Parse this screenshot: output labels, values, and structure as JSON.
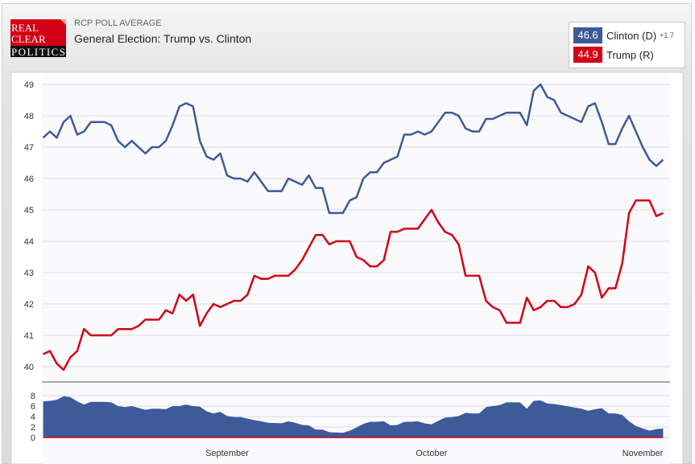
{
  "header": {
    "logo_text": "REAL CLEAR POLITICS",
    "subtitle": "RCP POLL AVERAGE",
    "title": "General Election: Trump vs. Clinton"
  },
  "legend": [
    {
      "value": "46.6",
      "name": "Clinton (D)",
      "spread": "+1.7",
      "color": "#3d5a99"
    },
    {
      "value": "44.9",
      "name": "Trump (R)",
      "color": "#d30015"
    }
  ],
  "chart_data": {
    "type": "line",
    "title": "General Election: Trump vs. Clinton",
    "ylim": [
      40,
      49
    ],
    "yticks": [
      "40",
      "41",
      "42",
      "43",
      "44",
      "45",
      "46",
      "47",
      "48",
      "49"
    ],
    "xticks": [
      {
        "label": "September",
        "date": "2016-09-01"
      },
      {
        "label": "October",
        "date": "2016-10-01"
      },
      {
        "label": "November",
        "date": "2016-11-01"
      }
    ],
    "grid": true,
    "series": [
      {
        "name": "Clinton (D)",
        "color": "#3d5a99",
        "points": [
          [
            "2016-08-05",
            47.3
          ],
          [
            "2016-08-06",
            47.5
          ],
          [
            "2016-08-07",
            47.3
          ],
          [
            "2016-08-08",
            47.8
          ],
          [
            "2016-08-09",
            48.0
          ],
          [
            "2016-08-10",
            47.4
          ],
          [
            "2016-08-11",
            47.5
          ],
          [
            "2016-08-12",
            47.8
          ],
          [
            "2016-08-14",
            47.8
          ],
          [
            "2016-08-15",
            47.7
          ],
          [
            "2016-08-16",
            47.2
          ],
          [
            "2016-08-17",
            47.0
          ],
          [
            "2016-08-18",
            47.2
          ],
          [
            "2016-08-20",
            46.8
          ],
          [
            "2016-08-21",
            47.0
          ],
          [
            "2016-08-22",
            47.0
          ],
          [
            "2016-08-23",
            47.2
          ],
          [
            "2016-08-24",
            47.7
          ],
          [
            "2016-08-25",
            48.3
          ],
          [
            "2016-08-26",
            48.4
          ],
          [
            "2016-08-27",
            48.3
          ],
          [
            "2016-08-28",
            47.2
          ],
          [
            "2016-08-29",
            46.7
          ],
          [
            "2016-08-30",
            46.6
          ],
          [
            "2016-08-31",
            46.8
          ],
          [
            "2016-09-01",
            46.1
          ],
          [
            "2016-09-02",
            46.0
          ],
          [
            "2016-09-03",
            46.0
          ],
          [
            "2016-09-04",
            45.9
          ],
          [
            "2016-09-05",
            46.2
          ],
          [
            "2016-09-06",
            45.9
          ],
          [
            "2016-09-07",
            45.6
          ],
          [
            "2016-09-09",
            45.6
          ],
          [
            "2016-09-10",
            46.0
          ],
          [
            "2016-09-11",
            45.9
          ],
          [
            "2016-09-12",
            45.8
          ],
          [
            "2016-09-13",
            46.1
          ],
          [
            "2016-09-14",
            45.7
          ],
          [
            "2016-09-15",
            45.7
          ],
          [
            "2016-09-16",
            44.9
          ],
          [
            "2016-09-18",
            44.9
          ],
          [
            "2016-09-19",
            45.3
          ],
          [
            "2016-09-20",
            45.4
          ],
          [
            "2016-09-21",
            46.0
          ],
          [
            "2016-09-22",
            46.2
          ],
          [
            "2016-09-23",
            46.2
          ],
          [
            "2016-09-24",
            46.5
          ],
          [
            "2016-09-25",
            46.6
          ],
          [
            "2016-09-26",
            46.7
          ],
          [
            "2016-09-27",
            47.4
          ],
          [
            "2016-09-28",
            47.4
          ],
          [
            "2016-09-29",
            47.5
          ],
          [
            "2016-09-30",
            47.4
          ],
          [
            "2016-10-01",
            47.5
          ],
          [
            "2016-10-02",
            47.8
          ],
          [
            "2016-10-03",
            48.1
          ],
          [
            "2016-10-04",
            48.1
          ],
          [
            "2016-10-05",
            48.0
          ],
          [
            "2016-10-06",
            47.6
          ],
          [
            "2016-10-07",
            47.5
          ],
          [
            "2016-10-08",
            47.5
          ],
          [
            "2016-10-09",
            47.9
          ],
          [
            "2016-10-10",
            47.9
          ],
          [
            "2016-10-11",
            48.0
          ],
          [
            "2016-10-12",
            48.1
          ],
          [
            "2016-10-14",
            48.1
          ],
          [
            "2016-10-15",
            47.7
          ],
          [
            "2016-10-16",
            48.8
          ],
          [
            "2016-10-17",
            49.0
          ],
          [
            "2016-10-18",
            48.6
          ],
          [
            "2016-10-19",
            48.5
          ],
          [
            "2016-10-20",
            48.1
          ],
          [
            "2016-10-23",
            47.8
          ],
          [
            "2016-10-24",
            48.3
          ],
          [
            "2016-10-25",
            48.4
          ],
          [
            "2016-10-26",
            47.8
          ],
          [
            "2016-10-27",
            47.1
          ],
          [
            "2016-10-28",
            47.1
          ],
          [
            "2016-10-29",
            47.6
          ],
          [
            "2016-10-30",
            48.0
          ],
          [
            "2016-10-31",
            47.5
          ],
          [
            "2016-11-01",
            47.0
          ],
          [
            "2016-11-02",
            46.6
          ],
          [
            "2016-11-03",
            46.4
          ],
          [
            "2016-11-04",
            46.6
          ]
        ]
      },
      {
        "name": "Trump (R)",
        "color": "#d30015",
        "points": [
          [
            "2016-08-05",
            40.4
          ],
          [
            "2016-08-06",
            40.5
          ],
          [
            "2016-08-07",
            40.1
          ],
          [
            "2016-08-08",
            39.9
          ],
          [
            "2016-08-09",
            40.3
          ],
          [
            "2016-08-10",
            40.5
          ],
          [
            "2016-08-11",
            41.2
          ],
          [
            "2016-08-12",
            41.0
          ],
          [
            "2016-08-15",
            41.0
          ],
          [
            "2016-08-16",
            41.2
          ],
          [
            "2016-08-18",
            41.2
          ],
          [
            "2016-08-19",
            41.3
          ],
          [
            "2016-08-20",
            41.5
          ],
          [
            "2016-08-22",
            41.5
          ],
          [
            "2016-08-23",
            41.8
          ],
          [
            "2016-08-24",
            41.7
          ],
          [
            "2016-08-25",
            42.3
          ],
          [
            "2016-08-26",
            42.1
          ],
          [
            "2016-08-27",
            42.3
          ],
          [
            "2016-08-28",
            41.3
          ],
          [
            "2016-08-29",
            41.7
          ],
          [
            "2016-08-30",
            42.0
          ],
          [
            "2016-08-31",
            41.9
          ],
          [
            "2016-09-02",
            42.1
          ],
          [
            "2016-09-03",
            42.1
          ],
          [
            "2016-09-04",
            42.3
          ],
          [
            "2016-09-05",
            42.9
          ],
          [
            "2016-09-06",
            42.8
          ],
          [
            "2016-09-07",
            42.8
          ],
          [
            "2016-09-08",
            42.9
          ],
          [
            "2016-09-10",
            42.9
          ],
          [
            "2016-09-11",
            43.1
          ],
          [
            "2016-09-12",
            43.4
          ],
          [
            "2016-09-13",
            43.8
          ],
          [
            "2016-09-14",
            44.2
          ],
          [
            "2016-09-15",
            44.2
          ],
          [
            "2016-09-16",
            43.9
          ],
          [
            "2016-09-17",
            44.0
          ],
          [
            "2016-09-19",
            44.0
          ],
          [
            "2016-09-20",
            43.5
          ],
          [
            "2016-09-21",
            43.4
          ],
          [
            "2016-09-22",
            43.2
          ],
          [
            "2016-09-23",
            43.2
          ],
          [
            "2016-09-24",
            43.4
          ],
          [
            "2016-09-25",
            44.3
          ],
          [
            "2016-09-26",
            44.3
          ],
          [
            "2016-09-27",
            44.4
          ],
          [
            "2016-09-29",
            44.4
          ],
          [
            "2016-09-30",
            44.7
          ],
          [
            "2016-10-01",
            45.0
          ],
          [
            "2016-10-02",
            44.6
          ],
          [
            "2016-10-03",
            44.3
          ],
          [
            "2016-10-04",
            44.2
          ],
          [
            "2016-10-05",
            43.9
          ],
          [
            "2016-10-06",
            42.9
          ],
          [
            "2016-10-08",
            42.9
          ],
          [
            "2016-10-09",
            42.1
          ],
          [
            "2016-10-10",
            41.9
          ],
          [
            "2016-10-11",
            41.8
          ],
          [
            "2016-10-12",
            41.4
          ],
          [
            "2016-10-14",
            41.4
          ],
          [
            "2016-10-15",
            42.2
          ],
          [
            "2016-10-16",
            41.8
          ],
          [
            "2016-10-17",
            41.9
          ],
          [
            "2016-10-18",
            42.1
          ],
          [
            "2016-10-19",
            42.1
          ],
          [
            "2016-10-20",
            41.9
          ],
          [
            "2016-10-21",
            41.9
          ],
          [
            "2016-10-22",
            42.0
          ],
          [
            "2016-10-23",
            42.3
          ],
          [
            "2016-10-24",
            43.2
          ],
          [
            "2016-10-25",
            43.0
          ],
          [
            "2016-10-26",
            42.2
          ],
          [
            "2016-10-27",
            42.5
          ],
          [
            "2016-10-28",
            42.5
          ],
          [
            "2016-10-29",
            43.3
          ],
          [
            "2016-10-30",
            44.9
          ],
          [
            "2016-10-31",
            45.3
          ],
          [
            "2016-11-02",
            45.3
          ],
          [
            "2016-11-03",
            44.8
          ],
          [
            "2016-11-04",
            44.9
          ]
        ]
      }
    ],
    "spread_panel": {
      "type": "area",
      "ylim": [
        0,
        8
      ],
      "yticks": [
        "0",
        "2",
        "4",
        "6",
        "8"
      ],
      "fill": "#3d5a99",
      "baseline_color": "#d30015"
    }
  }
}
